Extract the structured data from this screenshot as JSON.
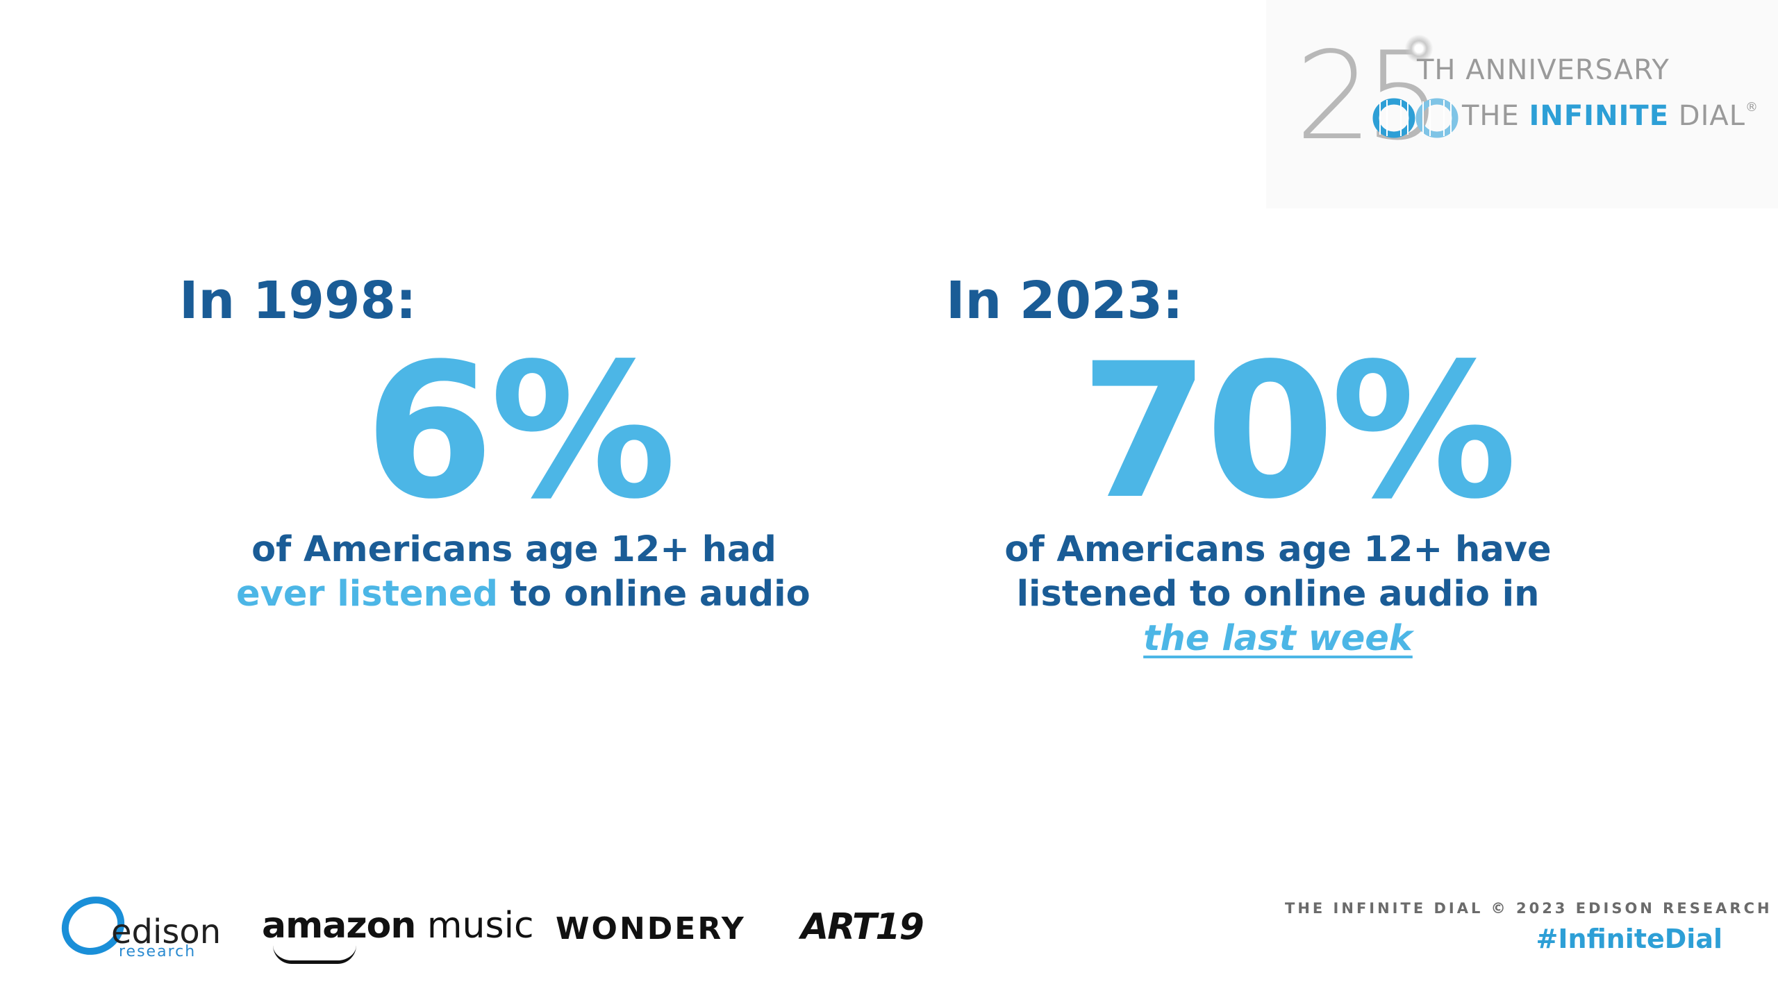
{
  "badge": {
    "numeral_2": "2",
    "numeral_5": "5",
    "anniversary": "TH ANNIVERSARY",
    "dial_prefix": "THE ",
    "dial_brand": "INFINITE",
    "dial_suffix": " DIAL",
    "registered": "®",
    "colors": {
      "grey": "#9a9a9a",
      "blue": "#2d9fd6"
    }
  },
  "left": {
    "year": "In 1998:",
    "stat": "6%",
    "line1": "of Americans age 12+ had",
    "line2_highlight": "ever listened",
    "line2_rest": " to online audio"
  },
  "right": {
    "year": "In 2023:",
    "stat": "70%",
    "line1": "of Americans age 12+ have",
    "line2": "listened to online audio in",
    "line3_highlight": "the last week"
  },
  "footer": {
    "logos": {
      "edison_word": "edison",
      "edison_sub": "research",
      "amazon_bold": "amazon",
      "amazon_rest": " music",
      "wondery": "WONDERY",
      "art19": "ART19"
    },
    "copyright": "THE INFINITE DIAL   © 2023 EDISON RESEARCH",
    "hashtag": "#InfiniteDial"
  },
  "colors": {
    "dark_blue": "#1a5c96",
    "light_blue": "#4cb6e6",
    "accent_blue": "#2d9fd6"
  }
}
